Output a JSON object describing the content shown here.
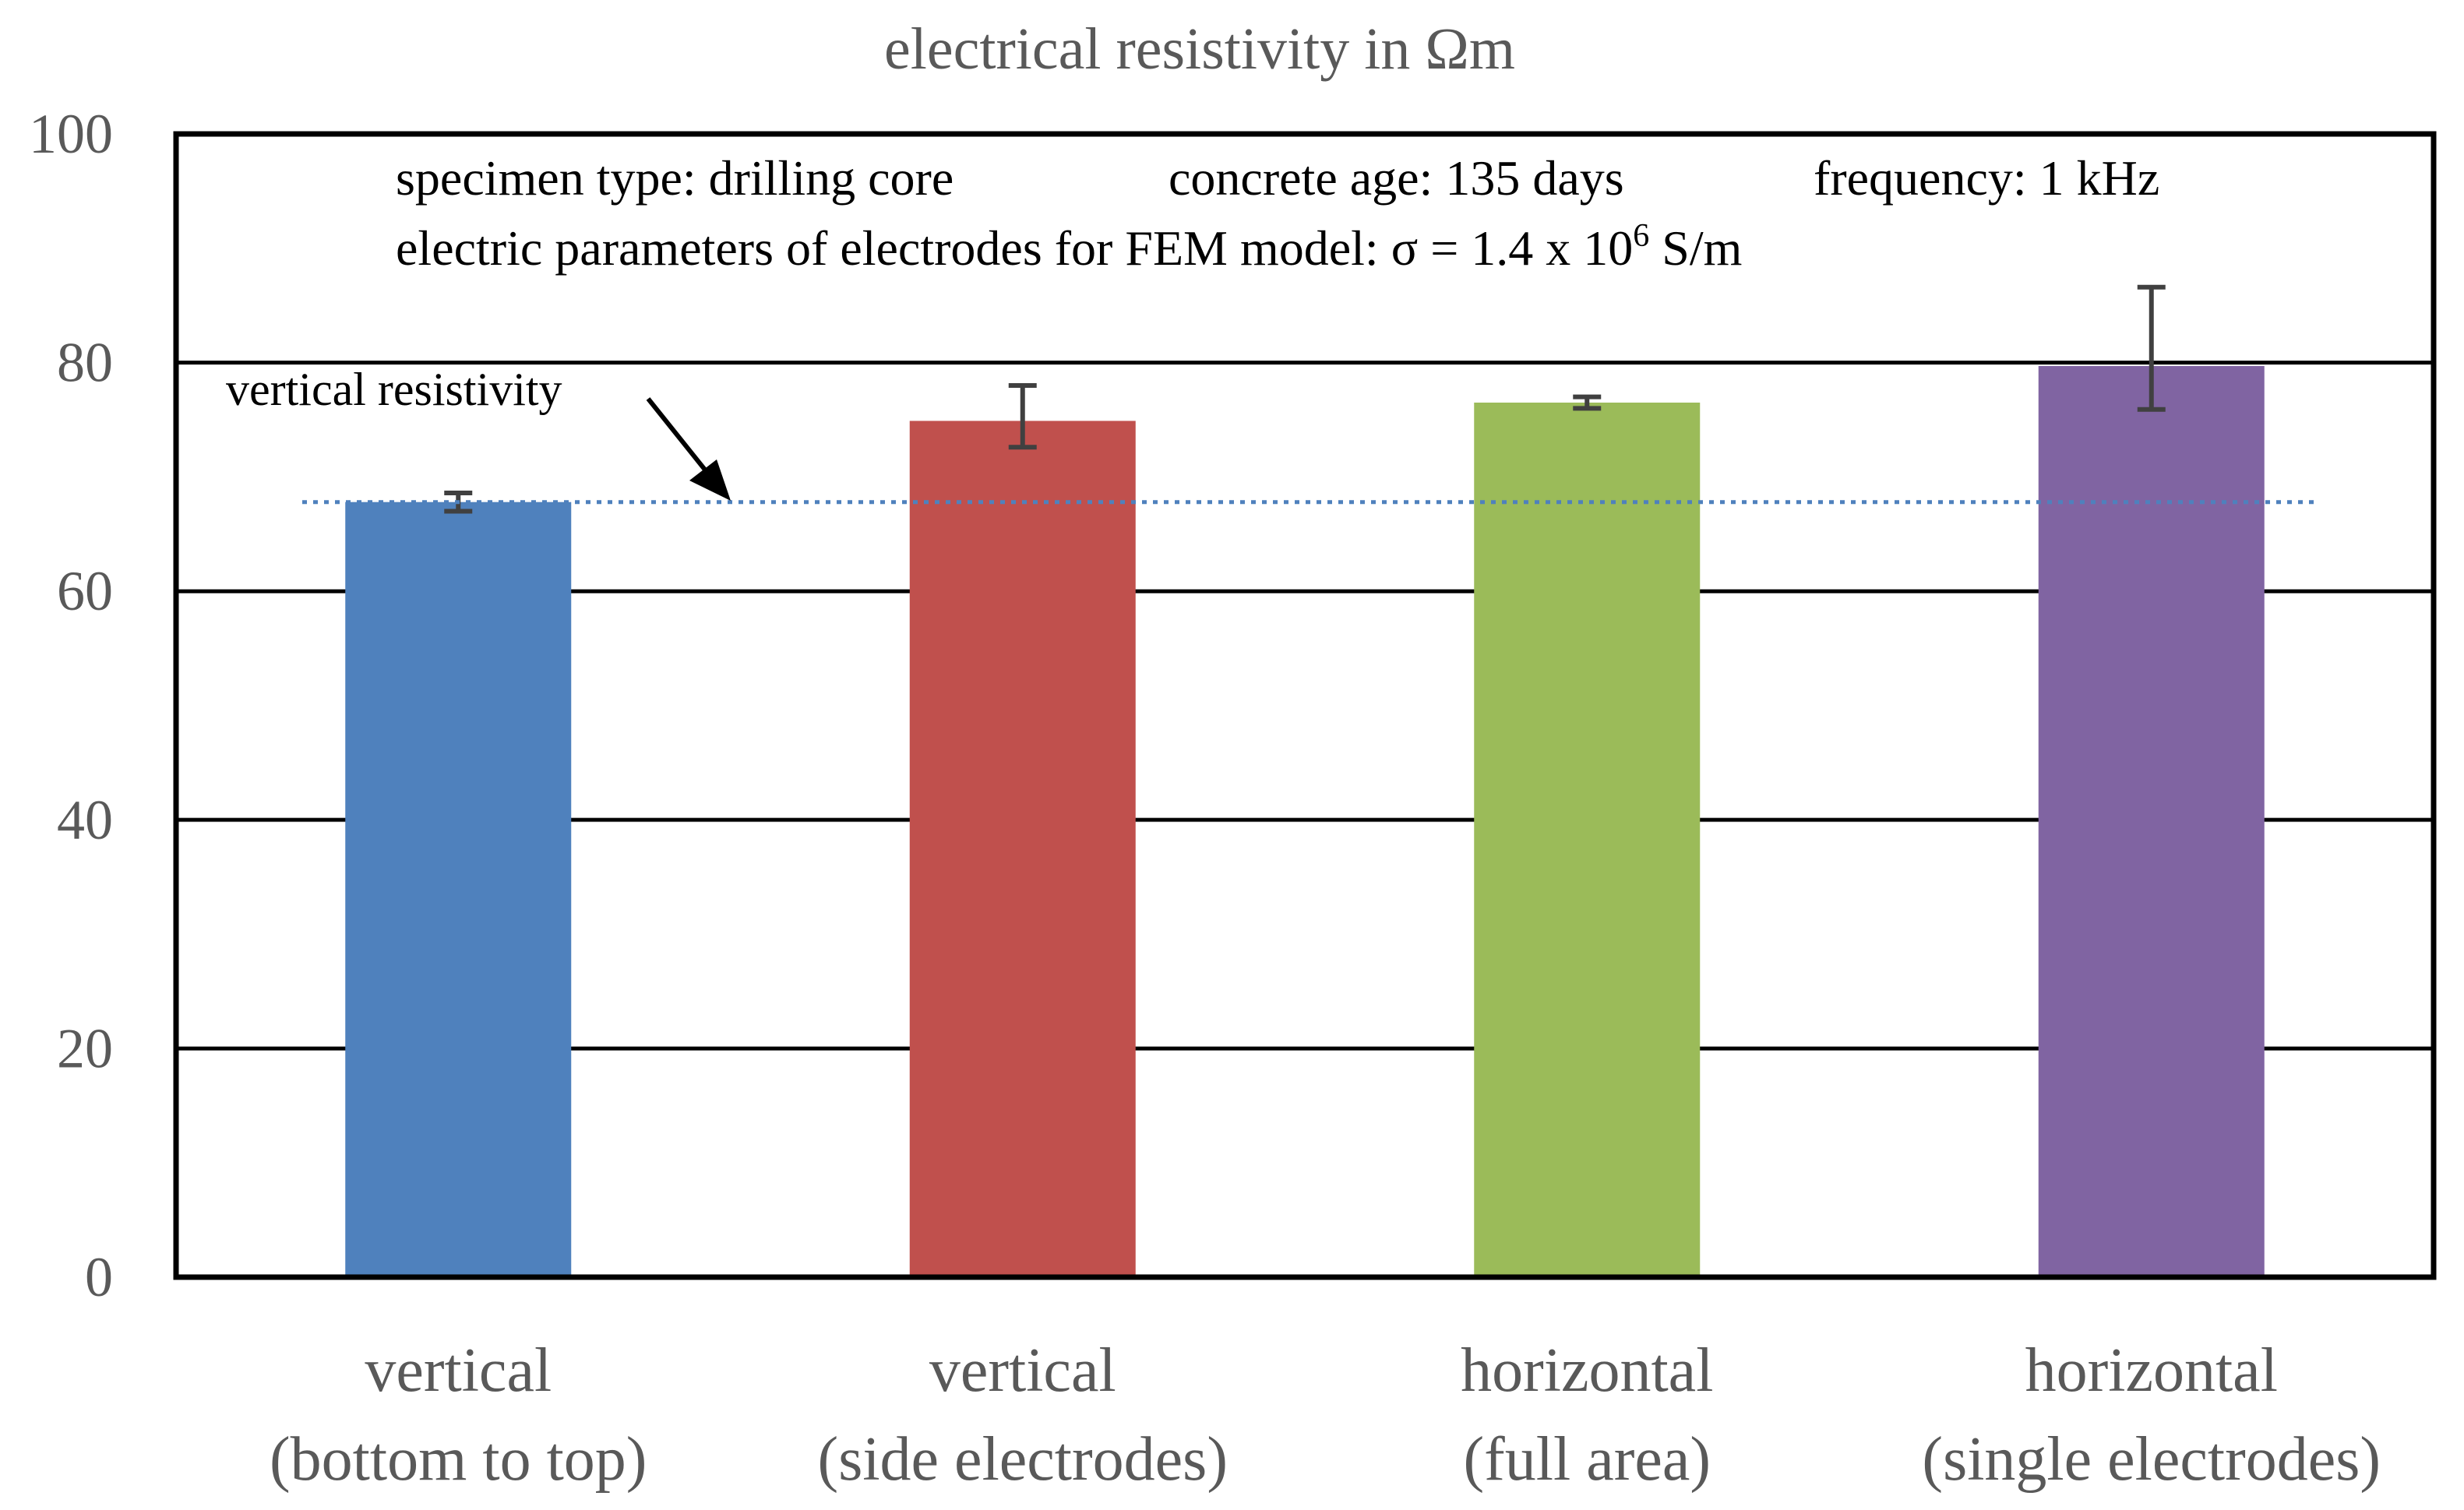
{
  "chart_data": {
    "type": "bar",
    "title": "electrical resistivity in Ωm",
    "xlabel": "",
    "ylabel": "",
    "ylim": [
      0,
      100
    ],
    "yticks": [
      0,
      20,
      40,
      60,
      80,
      100
    ],
    "grid": true,
    "categories": [
      {
        "line1": "vertical",
        "line2": "(bottom to top)"
      },
      {
        "line1": "vertical",
        "line2": "(side electrodes)"
      },
      {
        "line1": "horizontal",
        "line2": "(full area)"
      },
      {
        "line1": "horizontal",
        "line2": "(single electrodes)"
      }
    ],
    "values": [
      67.8,
      74.9,
      76.5,
      79.7
    ],
    "error_bars": [
      [
        67.0,
        68.6
      ],
      [
        72.6,
        78.0
      ],
      [
        76.0,
        77.0
      ],
      [
        75.9,
        86.6
      ]
    ],
    "colors": [
      "#4f81bd",
      "#c0504d",
      "#9bbb59",
      "#8064a2"
    ],
    "reference_line": {
      "value": 67.8,
      "label": "vertical resistivity",
      "color": "#4f81bd"
    },
    "info": {
      "specimen": "specimen type: drilling core",
      "age": "concrete age: 135 days",
      "frequency": "frequency: 1 kHz",
      "params_prefix": "electric parameters of electrodes for FEM model: σ = 1.4 x 10",
      "params_exp": "6",
      "params_suffix": " S/m"
    }
  }
}
